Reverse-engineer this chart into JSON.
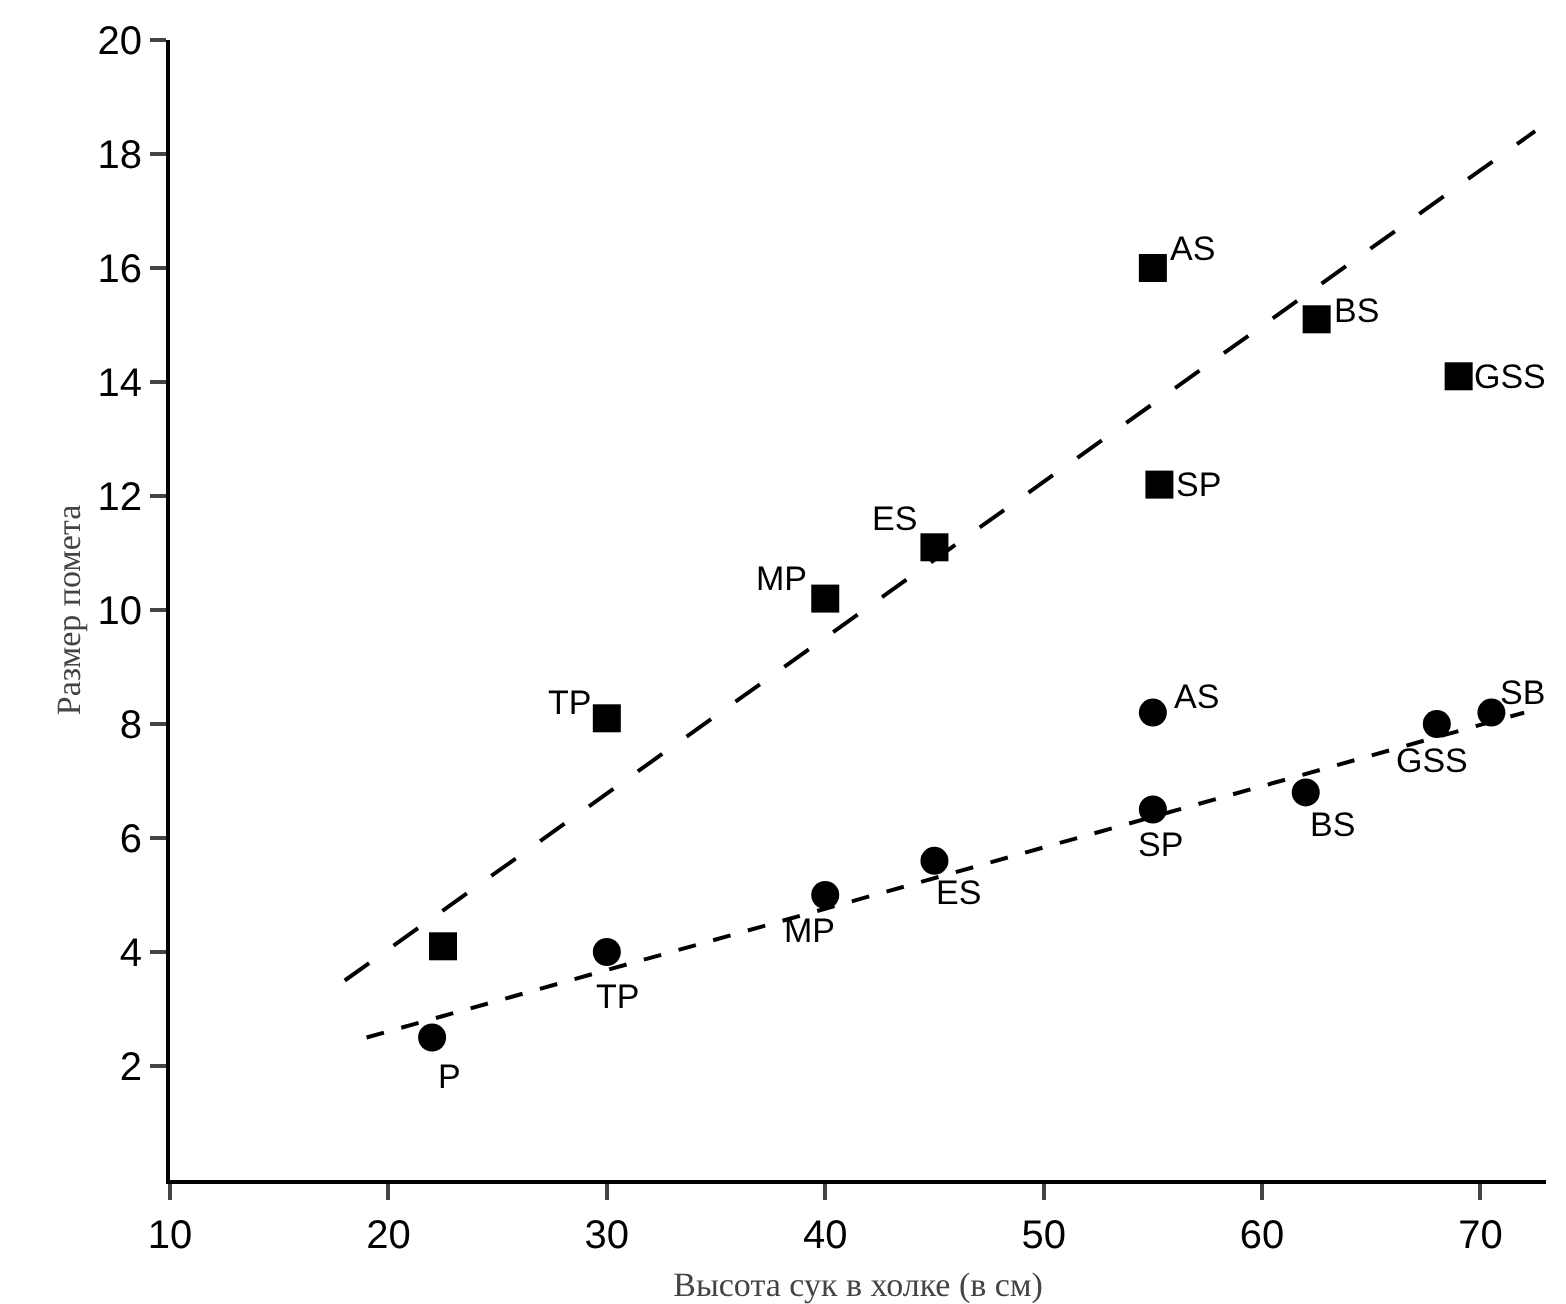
{
  "chart_data": {
    "type": "scatter",
    "xlabel": "Высота сук в холке (в см)",
    "ylabel": "Размер помета",
    "xlim": [
      10,
      73
    ],
    "ylim": [
      0,
      20
    ],
    "xticks": [
      10,
      20,
      30,
      40,
      50,
      60,
      70
    ],
    "yticks": [
      2,
      4,
      6,
      8,
      10,
      12,
      14,
      16,
      18,
      20
    ],
    "grid": false,
    "series": [
      {
        "marker": "square",
        "color": "#000000",
        "x": [
          22.5,
          30,
          40,
          45,
          55,
          55.3,
          62.5,
          69
        ],
        "values": [
          4.1,
          8.1,
          10.2,
          11.1,
          16,
          12.2,
          15.1,
          14.1
        ]
      },
      {
        "marker": "circle",
        "color": "#000000",
        "x": [
          22,
          30,
          40,
          45,
          55,
          55,
          62,
          68,
          70.5
        ],
        "values": [
          2.5,
          4,
          5,
          5.6,
          8.2,
          6.5,
          6.8,
          8,
          8.2
        ]
      },
      {
        "type": "line",
        "line_style": "dashed",
        "color": "#000000",
        "x": [
          18,
          72.5
        ],
        "values": [
          3.5,
          18.4
        ]
      },
      {
        "type": "line",
        "line_style": "dotted",
        "color": "#000000",
        "x": [
          19,
          72
        ],
        "values": [
          2.5,
          8.2
        ]
      }
    ],
    "annotations": [
      {
        "text": "TP",
        "x": 30,
        "y": 8.1
      },
      {
        "text": "MP",
        "x": 40,
        "y": 10.2
      },
      {
        "text": "ES",
        "x": 45,
        "y": 11.1
      },
      {
        "text": "AS",
        "x": 55,
        "y": 16
      },
      {
        "text": "SP",
        "x": 55.3,
        "y": 12.2
      },
      {
        "text": "BS",
        "x": 62.5,
        "y": 15.1
      },
      {
        "text": "GSS",
        "x": 69,
        "y": 14.1
      },
      {
        "text": "P",
        "x": 22,
        "y": 2.5
      },
      {
        "text": "TP",
        "x": 30,
        "y": 4
      },
      {
        "text": "MP",
        "x": 40,
        "y": 5
      },
      {
        "text": "ES",
        "x": 45,
        "y": 5.6
      },
      {
        "text": "AS",
        "x": 55,
        "y": 8.2
      },
      {
        "text": "SP",
        "x": 55,
        "y": 6.5
      },
      {
        "text": "BS",
        "x": 62,
        "y": 6.8
      },
      {
        "text": "GSS",
        "x": 68,
        "y": 8
      },
      {
        "text": "SB",
        "x": 70.5,
        "y": 8.2
      }
    ]
  }
}
